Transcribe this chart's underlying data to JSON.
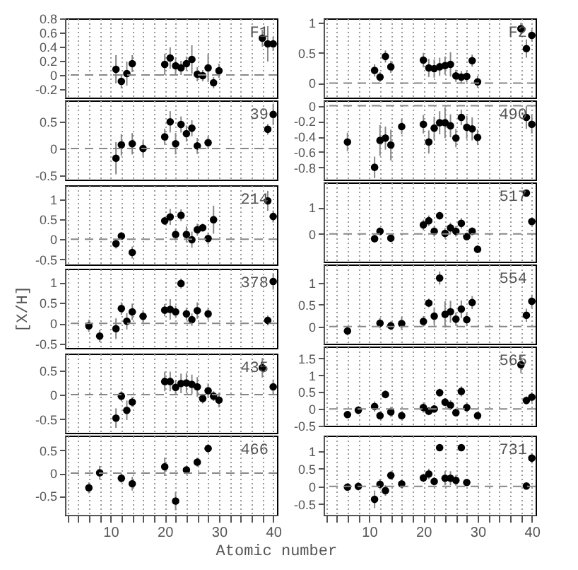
{
  "chart_data": [
    {
      "type": "scatter",
      "annotations": [
        "F1"
      ],
      "x": [
        11,
        12,
        13,
        14,
        20,
        21,
        22,
        23,
        24,
        25,
        26,
        27,
        28,
        29,
        30,
        38,
        39,
        40
      ],
      "series": [
        {
          "color": "#000000",
          "values": [
            0.08,
            -0.09,
            0.02,
            0.16,
            0.15,
            0.24,
            0.13,
            0.1,
            0.16,
            0.22,
            0.01,
            -0.01,
            0.1,
            -0.11,
            0.06,
            0.52,
            0.44,
            0.44
          ],
          "errors": [
            0.2,
            0.1,
            0.17,
            0.12,
            0.15,
            0.15,
            0.12,
            0.1,
            0.1,
            0.2,
            0.1,
            0.08,
            0.2,
            0.08,
            0.1,
            0.12,
            0.25,
            0.1
          ]
        }
      ],
      "xlim": [
        1.6,
        40.7
      ],
      "xticks": [
        {
          "value": 2,
          "label": null
        },
        {
          "value": 4,
          "label": null
        },
        {
          "value": 6,
          "label": null
        },
        {
          "value": 8,
          "label": null
        },
        10,
        {
          "value": 12,
          "label": null
        },
        {
          "value": 14,
          "label": null
        },
        {
          "value": 16,
          "label": null
        },
        {
          "value": 18,
          "label": null
        },
        20,
        {
          "value": 22,
          "label": null
        },
        {
          "value": 24,
          "label": null
        },
        {
          "value": 26,
          "label": null
        },
        {
          "value": 28,
          "label": null
        },
        30,
        {
          "value": 32,
          "label": null
        },
        {
          "value": 34,
          "label": null
        },
        {
          "value": 36,
          "label": null
        },
        {
          "value": 38,
          "label": null
        },
        40
      ],
      "ylim": [
        -0.32,
        0.8
      ],
      "yticks": [
        -0.2,
        0,
        0.2,
        0.4,
        0.6,
        0.8
      ],
      "ref_lines": [
        {
          "axis": "y",
          "value": 0,
          "line_style": "dashed"
        }
      ],
      "grid": "x",
      "marker": "circle",
      "tick_labels": "y"
    },
    {
      "type": "scatter",
      "annotations": [
        "F2"
      ],
      "x": [
        11,
        12,
        13,
        14,
        20,
        21,
        22,
        23,
        24,
        25,
        26,
        27,
        28,
        29,
        30,
        38,
        39,
        40
      ],
      "series": [
        {
          "color": "#000000",
          "values": [
            0.21,
            0.1,
            0.44,
            0.27,
            0.38,
            0.25,
            0.24,
            0.27,
            0.29,
            0.31,
            0.12,
            0.1,
            0.11,
            0.37,
            0.02,
            0.9,
            0.57,
            0.79
          ],
          "errors": [
            0.1,
            0.08,
            0.1,
            0.1,
            0.12,
            0.15,
            0.15,
            0.15,
            0.15,
            0.2,
            0.1,
            0.1,
            0.1,
            0.1,
            0.1,
            0.1,
            0.15,
            0.1
          ]
        }
      ],
      "xlim": [
        1.6,
        40.7
      ],
      "xticks": [
        {
          "value": 2,
          "label": null
        },
        {
          "value": 4,
          "label": null
        },
        {
          "value": 6,
          "label": null
        },
        {
          "value": 8,
          "label": null
        },
        10,
        {
          "value": 12,
          "label": null
        },
        {
          "value": 14,
          "label": null
        },
        {
          "value": 16,
          "label": null
        },
        {
          "value": 18,
          "label": null
        },
        20,
        {
          "value": 22,
          "label": null
        },
        {
          "value": 24,
          "label": null
        },
        {
          "value": 26,
          "label": null
        },
        {
          "value": 28,
          "label": null
        },
        30,
        {
          "value": 32,
          "label": null
        },
        {
          "value": 34,
          "label": null
        },
        {
          "value": 36,
          "label": null
        },
        {
          "value": 38,
          "label": null
        },
        40
      ],
      "ylim": [
        -0.24,
        1.07
      ],
      "yticks": [
        0,
        0.5,
        1
      ],
      "ref_lines": [
        {
          "axis": "y",
          "value": 0,
          "line_style": "dashed"
        }
      ],
      "grid": "x",
      "marker": "circle",
      "tick_labels": "y"
    },
    {
      "type": "scatter",
      "annotations": [
        "39"
      ],
      "x": [
        11,
        12,
        14,
        16,
        20,
        21,
        22,
        23,
        24,
        25,
        26,
        28,
        39,
        40
      ],
      "series": [
        {
          "color": "#000000",
          "values": [
            -0.18,
            0.07,
            0.09,
            0.0,
            0.22,
            0.5,
            0.09,
            0.45,
            0.28,
            0.38,
            0.05,
            0.11,
            0.36,
            0.64
          ],
          "errors": [
            0.3,
            0.2,
            0.2,
            0.15,
            0.15,
            0.2,
            0.2,
            0.15,
            0.15,
            0.15,
            0.15,
            0.12,
            0.1,
            0.2
          ]
        }
      ],
      "xlim": [
        1.6,
        40.7
      ],
      "xticks": [
        {
          "value": 2,
          "label": null
        },
        {
          "value": 4,
          "label": null
        },
        {
          "value": 6,
          "label": null
        },
        {
          "value": 8,
          "label": null
        },
        10,
        {
          "value": 12,
          "label": null
        },
        {
          "value": 14,
          "label": null
        },
        {
          "value": 16,
          "label": null
        },
        {
          "value": 18,
          "label": null
        },
        20,
        {
          "value": 22,
          "label": null
        },
        {
          "value": 24,
          "label": null
        },
        {
          "value": 26,
          "label": null
        },
        {
          "value": 28,
          "label": null
        },
        30,
        {
          "value": 32,
          "label": null
        },
        {
          "value": 34,
          "label": null
        },
        {
          "value": 36,
          "label": null
        },
        {
          "value": 38,
          "label": null
        },
        40
      ],
      "ylim": [
        -0.58,
        0.9
      ],
      "yticks": [
        -0.5,
        0,
        0.5
      ],
      "ref_lines": [
        {
          "axis": "y",
          "value": 0,
          "line_style": "dashed"
        }
      ],
      "grid": "x",
      "marker": "circle",
      "tick_labels": "y"
    },
    {
      "type": "scatter",
      "annotations": [
        "490"
      ],
      "x": [
        6,
        11,
        12,
        13,
        14,
        16,
        20,
        21,
        22,
        23,
        24,
        25,
        26,
        27,
        28,
        29,
        30,
        39,
        40
      ],
      "series": [
        {
          "color": "#000000",
          "values": [
            -0.47,
            -0.8,
            -0.45,
            -0.42,
            -0.51,
            -0.27,
            -0.24,
            -0.47,
            -0.29,
            -0.22,
            -0.22,
            -0.26,
            -0.42,
            -0.15,
            -0.28,
            -0.3,
            -0.41,
            -0.15,
            -0.24
          ],
          "errors": [
            0.12,
            0.14,
            0.2,
            0.15,
            0.2,
            0.1,
            0.12,
            0.15,
            0.15,
            0.15,
            0.2,
            0.15,
            0.12,
            0.1,
            0.15,
            0.15,
            0.1,
            0.15,
            0.12
          ]
        }
      ],
      "xlim": [
        1.6,
        40.7
      ],
      "xticks": [
        {
          "value": 2,
          "label": null
        },
        {
          "value": 4,
          "label": null
        },
        {
          "value": 6,
          "label": null
        },
        {
          "value": 8,
          "label": null
        },
        10,
        {
          "value": 12,
          "label": null
        },
        {
          "value": 14,
          "label": null
        },
        {
          "value": 16,
          "label": null
        },
        {
          "value": 18,
          "label": null
        },
        20,
        {
          "value": 22,
          "label": null
        },
        {
          "value": 24,
          "label": null
        },
        {
          "value": 26,
          "label": null
        },
        {
          "value": 28,
          "label": null
        },
        30,
        {
          "value": 32,
          "label": null
        },
        {
          "value": 34,
          "label": null
        },
        {
          "value": 36,
          "label": null
        },
        {
          "value": 38,
          "label": null
        },
        40
      ],
      "ylim": [
        -0.96,
        0.07
      ],
      "yticks": [
        -0.8,
        -0.6,
        -0.4,
        -0.2,
        0
      ],
      "ref_lines": [
        {
          "axis": "y",
          "value": 0,
          "line_style": "dashed"
        }
      ],
      "grid": "x",
      "marker": "circle",
      "tick_labels": "y"
    },
    {
      "type": "scatter",
      "annotations": [
        "214"
      ],
      "x": [
        11,
        12,
        14,
        20,
        21,
        22,
        23,
        24,
        25,
        26,
        27,
        28,
        29,
        39,
        40
      ],
      "series": [
        {
          "color": "#000000",
          "values": [
            -0.11,
            0.08,
            -0.33,
            0.46,
            0.56,
            0.12,
            0.6,
            0.12,
            -0.01,
            0.24,
            0.29,
            0.02,
            0.49,
            0.96,
            0.57
          ],
          "errors": [
            0.12,
            0.1,
            0.15,
            0.1,
            0.2,
            0.15,
            0.15,
            0.2,
            0.2,
            0.15,
            0.1,
            0.15,
            0.35,
            0.25,
            0.15
          ]
        }
      ],
      "xlim": [
        1.6,
        40.7
      ],
      "xticks": [
        {
          "value": 2,
          "label": null
        },
        {
          "value": 4,
          "label": null
        },
        {
          "value": 6,
          "label": null
        },
        {
          "value": 8,
          "label": null
        },
        10,
        {
          "value": 12,
          "label": null
        },
        {
          "value": 14,
          "label": null
        },
        {
          "value": 16,
          "label": null
        },
        {
          "value": 18,
          "label": null
        },
        20,
        {
          "value": 22,
          "label": null
        },
        {
          "value": 24,
          "label": null
        },
        {
          "value": 26,
          "label": null
        },
        {
          "value": 28,
          "label": null
        },
        30,
        {
          "value": 32,
          "label": null
        },
        {
          "value": 34,
          "label": null
        },
        {
          "value": 36,
          "label": null
        },
        {
          "value": 38,
          "label": null
        },
        40
      ],
      "ylim": [
        -0.63,
        1.35
      ],
      "yticks": [
        -0.5,
        0,
        0.5,
        1
      ],
      "ref_lines": [
        {
          "axis": "y",
          "value": 0,
          "line_style": "dashed"
        }
      ],
      "grid": "x",
      "marker": "circle",
      "tick_labels": "y"
    },
    {
      "type": "scatter",
      "annotations": [
        "517"
      ],
      "x": [
        11,
        12,
        14,
        20,
        21,
        22,
        23,
        24,
        25,
        26,
        27,
        28,
        29,
        30,
        39,
        40
      ],
      "series": [
        {
          "color": "#000000",
          "values": [
            -0.18,
            0.1,
            -0.16,
            0.34,
            0.5,
            0.1,
            0.69,
            0.02,
            0.23,
            0.1,
            0.4,
            -0.1,
            0.1,
            -0.58,
            1.55,
            0.47
          ],
          "errors": [
            0.15,
            0.15,
            0.15,
            0.2,
            0.2,
            0.2,
            0.15,
            0.2,
            0.2,
            0.2,
            0.2,
            0.15,
            0.15,
            0.15,
            0.1,
            0.15
          ]
        }
      ],
      "xlim": [
        1.6,
        40.7
      ],
      "xticks": [
        {
          "value": 2,
          "label": null
        },
        {
          "value": 4,
          "label": null
        },
        {
          "value": 6,
          "label": null
        },
        {
          "value": 8,
          "label": null
        },
        10,
        {
          "value": 12,
          "label": null
        },
        {
          "value": 14,
          "label": null
        },
        {
          "value": 16,
          "label": null
        },
        {
          "value": 18,
          "label": null
        },
        20,
        {
          "value": 22,
          "label": null
        },
        {
          "value": 24,
          "label": null
        },
        {
          "value": 26,
          "label": null
        },
        {
          "value": 28,
          "label": null
        },
        30,
        {
          "value": 32,
          "label": null
        },
        {
          "value": 34,
          "label": null
        },
        {
          "value": 36,
          "label": null
        },
        {
          "value": 38,
          "label": null
        },
        40
      ],
      "ylim": [
        -1.05,
        1.95
      ],
      "yticks": [
        0,
        1
      ],
      "ref_lines": [
        {
          "axis": "y",
          "value": 0,
          "line_style": "dashed"
        }
      ],
      "grid": "x",
      "marker": "circle",
      "tick_labels": "y"
    },
    {
      "type": "scatter",
      "annotations": [
        "378"
      ],
      "ylabel": "[X/H]",
      "x": [
        6,
        8,
        11,
        12,
        13,
        14,
        16,
        20,
        21,
        22,
        23,
        24,
        25,
        26,
        28,
        39,
        40
      ],
      "series": [
        {
          "color": "#000000",
          "values": [
            -0.06,
            -0.31,
            -0.13,
            0.36,
            0.05,
            0.28,
            0.17,
            0.32,
            0.34,
            0.28,
            0.97,
            0.23,
            0.09,
            0.31,
            0.23,
            0.07,
            1.02
          ],
          "errors": [
            0.15,
            0.15,
            0.25,
            0.15,
            0.2,
            0.2,
            0.15,
            0.15,
            0.25,
            0.15,
            0.12,
            0.15,
            0.15,
            0.2,
            0.15,
            0.12,
            0.2
          ]
        }
      ],
      "xlim": [
        1.6,
        40.7
      ],
      "xticks": [
        {
          "value": 2,
          "label": null
        },
        {
          "value": 4,
          "label": null
        },
        {
          "value": 6,
          "label": null
        },
        {
          "value": 8,
          "label": null
        },
        10,
        {
          "value": 12,
          "label": null
        },
        {
          "value": 14,
          "label": null
        },
        {
          "value": 16,
          "label": null
        },
        {
          "value": 18,
          "label": null
        },
        20,
        {
          "value": 22,
          "label": null
        },
        {
          "value": 24,
          "label": null
        },
        {
          "value": 26,
          "label": null
        },
        {
          "value": 28,
          "label": null
        },
        30,
        {
          "value": 32,
          "label": null
        },
        {
          "value": 34,
          "label": null
        },
        {
          "value": 36,
          "label": null
        },
        {
          "value": 38,
          "label": null
        },
        40
      ],
      "ylim": [
        -0.6,
        1.33
      ],
      "yticks": [
        -0.5,
        0,
        0.5,
        1
      ],
      "ref_lines": [
        {
          "axis": "y",
          "value": 0,
          "line_style": "dashed"
        }
      ],
      "grid": "x",
      "marker": "circle",
      "tick_labels": "y"
    },
    {
      "type": "scatter",
      "annotations": [
        "554"
      ],
      "x": [
        6,
        12,
        14,
        16,
        20,
        21,
        22,
        23,
        24,
        25,
        26,
        27,
        28,
        29,
        39,
        40
      ],
      "series": [
        {
          "color": "#000000",
          "values": [
            -0.1,
            0.08,
            0.02,
            0.07,
            0.12,
            0.54,
            0.24,
            1.11,
            0.28,
            0.34,
            0.17,
            0.4,
            0.16,
            0.55,
            0.26,
            0.58
          ],
          "errors": [
            0.1,
            0.12,
            0.1,
            0.15,
            0.12,
            0.1,
            0.2,
            0.15,
            0.3,
            0.25,
            0.15,
            0.2,
            0.15,
            0.15,
            0.15,
            0.15
          ]
        }
      ],
      "xlim": [
        1.6,
        40.7
      ],
      "xticks": [
        {
          "value": 2,
          "label": null
        },
        {
          "value": 4,
          "label": null
        },
        {
          "value": 6,
          "label": null
        },
        {
          "value": 8,
          "label": null
        },
        10,
        {
          "value": 12,
          "label": null
        },
        {
          "value": 14,
          "label": null
        },
        {
          "value": 16,
          "label": null
        },
        {
          "value": 18,
          "label": null
        },
        20,
        {
          "value": 22,
          "label": null
        },
        {
          "value": 24,
          "label": null
        },
        {
          "value": 26,
          "label": null
        },
        {
          "value": 28,
          "label": null
        },
        30,
        {
          "value": 32,
          "label": null
        },
        {
          "value": 34,
          "label": null
        },
        {
          "value": 36,
          "label": null
        },
        {
          "value": 38,
          "label": null
        },
        40
      ],
      "ylim": [
        -0.39,
        1.42
      ],
      "yticks": [
        0,
        0.5,
        1
      ],
      "ref_lines": [
        {
          "axis": "y",
          "value": 0,
          "line_style": "dashed"
        }
      ],
      "grid": "x",
      "marker": "circle",
      "tick_labels": "y"
    },
    {
      "type": "scatter",
      "annotations": [
        "435"
      ],
      "x": [
        11,
        12,
        13,
        14,
        20,
        21,
        22,
        23,
        24,
        25,
        26,
        27,
        28,
        29,
        30,
        38,
        40
      ],
      "series": [
        {
          "color": "#000000",
          "values": [
            -0.48,
            -0.03,
            -0.32,
            -0.15,
            0.27,
            0.27,
            0.15,
            0.23,
            0.24,
            0.21,
            0.16,
            -0.08,
            0.08,
            -0.03,
            -0.11,
            0.55,
            0.16
          ],
          "errors": [
            0.2,
            0.1,
            0.2,
            0.1,
            0.2,
            0.2,
            0.15,
            0.2,
            0.2,
            0.2,
            0.2,
            0.1,
            0.15,
            0.1,
            0.15,
            0.2,
            0.15
          ]
        }
      ],
      "xlim": [
        1.6,
        40.7
      ],
      "xticks": [
        {
          "value": 2,
          "label": null
        },
        {
          "value": 4,
          "label": null
        },
        {
          "value": 6,
          "label": null
        },
        {
          "value": 8,
          "label": null
        },
        10,
        {
          "value": 12,
          "label": null
        },
        {
          "value": 14,
          "label": null
        },
        {
          "value": 16,
          "label": null
        },
        {
          "value": 18,
          "label": null
        },
        20,
        {
          "value": 22,
          "label": null
        },
        {
          "value": 24,
          "label": null
        },
        {
          "value": 26,
          "label": null
        },
        {
          "value": 28,
          "label": null
        },
        30,
        {
          "value": 32,
          "label": null
        },
        {
          "value": 34,
          "label": null
        },
        {
          "value": 36,
          "label": null
        },
        {
          "value": 38,
          "label": null
        },
        40
      ],
      "ylim": [
        -0.78,
        0.84
      ],
      "yticks": [
        -0.5,
        0,
        0.5
      ],
      "ref_lines": [
        {
          "axis": "y",
          "value": 0,
          "line_style": "dashed"
        }
      ],
      "grid": "x",
      "marker": "circle",
      "tick_labels": "y"
    },
    {
      "type": "scatter",
      "annotations": [
        "565"
      ],
      "x": [
        6,
        8,
        11,
        12,
        13,
        14,
        16,
        20,
        21,
        22,
        23,
        24,
        25,
        26,
        27,
        28,
        30,
        38,
        39,
        40
      ],
      "series": [
        {
          "color": "#000000",
          "values": [
            -0.17,
            -0.04,
            0.07,
            -0.2,
            0.43,
            -0.09,
            -0.2,
            0.04,
            -0.07,
            0.0,
            0.48,
            0.2,
            0.11,
            -0.11,
            0.52,
            0.04,
            -0.2,
            1.31,
            0.25,
            0.35
          ],
          "errors": [
            0.1,
            0.12,
            0.15,
            0.12,
            0.12,
            0.15,
            0.1,
            0.15,
            0.12,
            0.12,
            0.12,
            0.12,
            0.15,
            0.12,
            0.15,
            0.15,
            0.08,
            0.25,
            0.12,
            0.15
          ]
        }
      ],
      "xlim": [
        1.6,
        40.7
      ],
      "xticks": [
        {
          "value": 2,
          "label": null
        },
        {
          "value": 4,
          "label": null
        },
        {
          "value": 6,
          "label": null
        },
        {
          "value": 8,
          "label": null
        },
        10,
        {
          "value": 12,
          "label": null
        },
        {
          "value": 14,
          "label": null
        },
        {
          "value": 16,
          "label": null
        },
        {
          "value": 18,
          "label": null
        },
        20,
        {
          "value": 22,
          "label": null
        },
        {
          "value": 24,
          "label": null
        },
        {
          "value": 26,
          "label": null
        },
        {
          "value": 28,
          "label": null
        },
        30,
        {
          "value": 32,
          "label": null
        },
        {
          "value": 34,
          "label": null
        },
        {
          "value": 36,
          "label": null
        },
        {
          "value": 38,
          "label": null
        },
        40
      ],
      "ylim": [
        -0.5,
        1.85
      ],
      "yticks": [
        -0.5,
        0,
        0.5,
        1,
        1.5
      ],
      "ref_lines": [
        {
          "axis": "y",
          "value": 0,
          "line_style": "dashed"
        }
      ],
      "grid": "x",
      "marker": "circle",
      "tick_labels": "y"
    },
    {
      "type": "scatter",
      "annotations": [
        "466"
      ],
      "x": [
        6,
        8,
        12,
        14,
        20,
        22,
        24,
        26,
        28
      ],
      "series": [
        {
          "color": "#000000",
          "values": [
            -0.32,
            0.01,
            -0.11,
            -0.23,
            0.14,
            -0.61,
            0.07,
            0.24,
            0.54
          ],
          "errors": [
            0.12,
            0.15,
            0.1,
            0.15,
            0.2,
            0.2,
            0.1,
            0.1,
            0.1
          ]
        }
      ],
      "xlim": [
        1.6,
        40.7
      ],
      "xticks": [
        {
          "value": 2,
          "label": null
        },
        {
          "value": 4,
          "label": null
        },
        {
          "value": 6,
          "label": null
        },
        {
          "value": 8,
          "label": null
        },
        10,
        {
          "value": 12,
          "label": null
        },
        {
          "value": 14,
          "label": null
        },
        {
          "value": 16,
          "label": null
        },
        {
          "value": 18,
          "label": null
        },
        20,
        {
          "value": 22,
          "label": null
        },
        {
          "value": 24,
          "label": null
        },
        {
          "value": 26,
          "label": null
        },
        {
          "value": 28,
          "label": null
        },
        30,
        {
          "value": 32,
          "label": null
        },
        {
          "value": 34,
          "label": null
        },
        {
          "value": 36,
          "label": null
        },
        {
          "value": 38,
          "label": null
        },
        40
      ],
      "ylim": [
        -0.91,
        0.82
      ],
      "yticks": [
        -0.5,
        0,
        0.5
      ],
      "ref_lines": [
        {
          "axis": "y",
          "value": 0,
          "line_style": "dashed"
        }
      ],
      "grid": "x",
      "marker": "circle"
    },
    {
      "type": "scatter",
      "annotations": [
        "731"
      ],
      "xlabel": "Atomic number",
      "x": [
        6,
        8,
        11,
        12,
        13,
        14,
        16,
        20,
        21,
        22,
        23,
        24,
        25,
        26,
        27,
        28,
        39,
        40
      ],
      "series": [
        {
          "color": "#000000",
          "values": [
            -0.02,
            0.0,
            -0.37,
            0.06,
            -0.12,
            0.31,
            0.07,
            0.24,
            0.35,
            0.14,
            1.1,
            0.23,
            0.23,
            0.17,
            1.1,
            0.11,
            0.01,
            0.8
          ],
          "errors": [
            0.1,
            0.12,
            0.25,
            0.15,
            0.15,
            0.12,
            0.1,
            0.12,
            0.15,
            0.12,
            0.1,
            0.2,
            0.2,
            0.15,
            0.1,
            0.1,
            0.1,
            0.15
          ]
        }
      ],
      "xlim": [
        1.6,
        40.7
      ],
      "xticks": [
        {
          "value": 2,
          "label": null
        },
        {
          "value": 4,
          "label": null
        },
        {
          "value": 6,
          "label": null
        },
        {
          "value": 8,
          "label": null
        },
        10,
        {
          "value": 12,
          "label": null
        },
        {
          "value": 14,
          "label": null
        },
        {
          "value": 16,
          "label": null
        },
        {
          "value": 18,
          "label": null
        },
        20,
        {
          "value": 22,
          "label": null
        },
        {
          "value": 24,
          "label": null
        },
        {
          "value": 26,
          "label": null
        },
        {
          "value": 28,
          "label": null
        },
        30,
        {
          "value": 32,
          "label": null
        },
        {
          "value": 34,
          "label": null
        },
        {
          "value": 36,
          "label": null
        },
        {
          "value": 38,
          "label": null
        },
        40
      ],
      "ylim": [
        -0.81,
        1.44
      ],
      "yticks": [
        -0.5,
        0,
        0.5,
        1
      ],
      "ref_lines": [
        {
          "axis": "y",
          "value": 0,
          "line_style": "dashed"
        }
      ],
      "grid": "x",
      "marker": "circle"
    }
  ]
}
